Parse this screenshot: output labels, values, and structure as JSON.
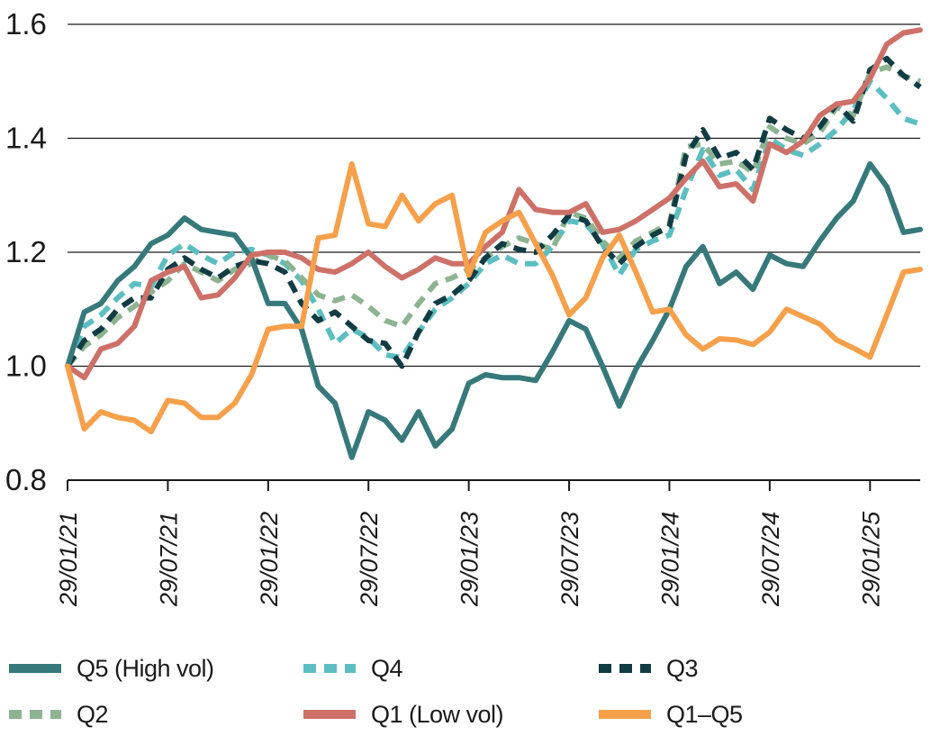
{
  "chart_data": {
    "type": "line",
    "title": "",
    "xlabel": "",
    "ylabel": "",
    "ylim": [
      0.8,
      1.6
    ],
    "y_ticks": [
      1.6,
      1.4,
      1.2,
      1.0,
      0.8
    ],
    "y_tick_labels": [
      "1.6",
      "1.4",
      "1.2",
      "1.0",
      "0.8"
    ],
    "grid": "horizontal",
    "legend_position": "bottom",
    "n_points": 52,
    "x_start_label": "29/01/21",
    "x_ticks": [
      {
        "index": 0,
        "label": "29/01/21"
      },
      {
        "index": 6,
        "label": "29/07/21"
      },
      {
        "index": 12,
        "label": "29/01/22"
      },
      {
        "index": 18,
        "label": "29/07/22"
      },
      {
        "index": 24,
        "label": "29/01/23"
      },
      {
        "index": 30,
        "label": "29/07/23"
      },
      {
        "index": 36,
        "label": "29/01/24"
      },
      {
        "index": 42,
        "label": "29/07/24"
      },
      {
        "index": 48,
        "label": "29/01/25"
      }
    ],
    "draw_order": [
      1,
      3,
      2,
      0,
      4,
      5
    ],
    "series": [
      {
        "name": "Q5 (High vol)",
        "color": "#37797b",
        "dash": "solid",
        "values": [
          1.0,
          1.095,
          1.11,
          1.15,
          1.175,
          1.215,
          1.23,
          1.26,
          1.24,
          1.235,
          1.23,
          1.19,
          1.11,
          1.11,
          1.065,
          0.965,
          0.935,
          0.84,
          0.92,
          0.905,
          0.87,
          0.92,
          0.86,
          0.89,
          0.97,
          0.985,
          0.98,
          0.98,
          0.975,
          1.025,
          1.08,
          1.065,
          1.0,
          0.93,
          0.995,
          1.045,
          1.1,
          1.175,
          1.21,
          1.145,
          1.165,
          1.135,
          1.195,
          1.18,
          1.175,
          1.22,
          1.26,
          1.29,
          1.355,
          1.315,
          1.235,
          1.24
        ]
      },
      {
        "name": "Q4",
        "color": "#5cbec0",
        "dash": "dashed",
        "values": [
          1.0,
          1.07,
          1.09,
          1.12,
          1.145,
          1.14,
          1.195,
          1.215,
          1.195,
          1.18,
          1.2,
          1.205,
          1.195,
          1.18,
          1.15,
          1.1,
          1.04,
          1.065,
          1.05,
          1.02,
          1.015,
          1.06,
          1.1,
          1.12,
          1.145,
          1.18,
          1.195,
          1.18,
          1.18,
          1.21,
          1.255,
          1.25,
          1.215,
          1.16,
          1.205,
          1.22,
          1.23,
          1.31,
          1.38,
          1.335,
          1.345,
          1.31,
          1.4,
          1.38,
          1.37,
          1.39,
          1.415,
          1.45,
          1.5,
          1.47,
          1.435,
          1.425
        ]
      },
      {
        "name": "Q3",
        "color": "#123c44",
        "dash": "dashed",
        "values": [
          1.0,
          1.045,
          1.065,
          1.1,
          1.12,
          1.12,
          1.17,
          1.19,
          1.17,
          1.155,
          1.175,
          1.185,
          1.18,
          1.165,
          1.11,
          1.08,
          1.095,
          1.07,
          1.045,
          1.04,
          1.0,
          1.06,
          1.11,
          1.125,
          1.15,
          1.19,
          1.215,
          1.205,
          1.2,
          1.23,
          1.265,
          1.255,
          1.21,
          1.18,
          1.21,
          1.23,
          1.245,
          1.37,
          1.415,
          1.365,
          1.375,
          1.345,
          1.435,
          1.415,
          1.4,
          1.42,
          1.46,
          1.43,
          1.52,
          1.54,
          1.51,
          1.49
        ]
      },
      {
        "name": "Q2",
        "color": "#8db391",
        "dash": "dashed",
        "values": [
          1.0,
          1.035,
          1.055,
          1.085,
          1.105,
          1.13,
          1.15,
          1.18,
          1.165,
          1.15,
          1.17,
          1.18,
          1.195,
          1.185,
          1.155,
          1.125,
          1.115,
          1.125,
          1.105,
          1.08,
          1.07,
          1.11,
          1.145,
          1.155,
          1.17,
          1.19,
          1.21,
          1.225,
          1.215,
          1.205,
          1.27,
          1.26,
          1.22,
          1.19,
          1.22,
          1.235,
          1.25,
          1.385,
          1.39,
          1.355,
          1.36,
          1.34,
          1.42,
          1.4,
          1.39,
          1.41,
          1.455,
          1.44,
          1.515,
          1.525,
          1.51,
          1.5
        ]
      },
      {
        "name": "Q1 (Low vol)",
        "color": "#cd7168",
        "dash": "solid",
        "values": [
          1.0,
          0.98,
          1.03,
          1.04,
          1.07,
          1.15,
          1.165,
          1.175,
          1.12,
          1.125,
          1.155,
          1.195,
          1.2,
          1.2,
          1.19,
          1.17,
          1.165,
          1.18,
          1.2,
          1.175,
          1.155,
          1.17,
          1.19,
          1.18,
          1.18,
          1.21,
          1.235,
          1.31,
          1.275,
          1.27,
          1.27,
          1.285,
          1.235,
          1.24,
          1.255,
          1.275,
          1.295,
          1.33,
          1.36,
          1.315,
          1.32,
          1.29,
          1.39,
          1.375,
          1.395,
          1.44,
          1.46,
          1.465,
          1.505,
          1.565,
          1.585,
          1.59
        ]
      },
      {
        "name": "Q1–Q5",
        "color": "#f6a04b",
        "dash": "solid",
        "values": [
          1.0,
          0.89,
          0.92,
          0.91,
          0.905,
          0.885,
          0.94,
          0.935,
          0.91,
          0.91,
          0.935,
          0.985,
          1.065,
          1.07,
          1.07,
          1.225,
          1.23,
          1.355,
          1.25,
          1.245,
          1.3,
          1.255,
          1.285,
          1.3,
          1.16,
          1.235,
          1.255,
          1.27,
          1.215,
          1.16,
          1.09,
          1.12,
          1.19,
          1.23,
          1.165,
          1.095,
          1.1,
          1.055,
          1.03,
          1.048,
          1.046,
          1.038,
          1.06,
          1.1,
          1.087,
          1.074,
          1.046,
          1.032,
          1.016,
          1.09,
          1.165,
          1.17
        ]
      }
    ],
    "axis_color": "#1a1a1a",
    "legend_rows": [
      {
        "series_indices": [
          0,
          1,
          2
        ]
      },
      {
        "series_indices": [
          3,
          4,
          5
        ]
      }
    ]
  }
}
